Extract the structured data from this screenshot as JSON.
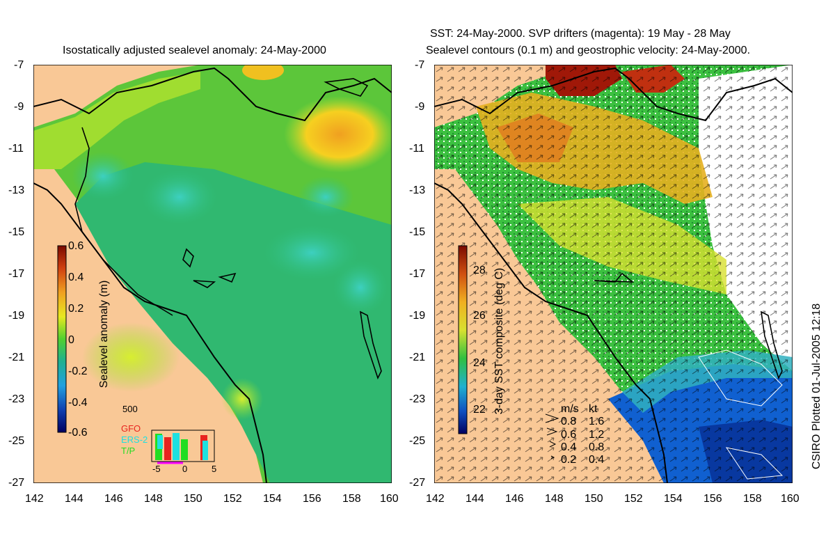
{
  "left_panel": {
    "title": "Isostatically adjusted sealevel anomaly: 24-May-2000",
    "y_ticks": [
      "-7",
      "-9",
      "-11",
      "-13",
      "-15",
      "-17",
      "-19",
      "-21",
      "-23",
      "-25",
      "-27"
    ],
    "x_ticks": [
      "142",
      "144",
      "146",
      "148",
      "150",
      "152",
      "154",
      "156",
      "158",
      "160"
    ],
    "colorbar": {
      "label": "Sealevel anomaly (m)",
      "ticks": [
        "0.6",
        "0.4",
        "0.2",
        "0",
        "-0.2",
        "-0.4",
        "-0.6"
      ]
    },
    "inset": {
      "top_label": "500",
      "legend": [
        {
          "name": "GFO",
          "color": "#e8231f"
        },
        {
          "name": "ERS-2",
          "color": "#1ee0e0"
        },
        {
          "name": "T/P",
          "color": "#22dd22"
        }
      ],
      "x_ticks": [
        "-5",
        "0",
        "5"
      ]
    }
  },
  "right_panel": {
    "title_line1": "SST: 24-May-2000. SVP drifters (magenta): 19 May - 28 May",
    "title_line2": "Sealevel contours (0.1 m) and geostrophic velocity: 24-May-2000.",
    "y_ticks": [
      "-7",
      "-9",
      "-11",
      "-13",
      "-15",
      "-17",
      "-19",
      "-21",
      "-23",
      "-25",
      "-27"
    ],
    "x_ticks": [
      "142",
      "144",
      "146",
      "148",
      "150",
      "152",
      "154",
      "156",
      "158",
      "160"
    ],
    "colorbar": {
      "label": "3-day SST composite (deg C)",
      "ticks": [
        "28",
        "26",
        "24",
        "22"
      ]
    },
    "velocity_legend": {
      "header_ms": "m/s",
      "header_kt": "kt",
      "rows": [
        {
          "ms": "0.8",
          "kt": "1.6"
        },
        {
          "ms": "0.6",
          "kt": "1.2"
        },
        {
          "ms": "0.4",
          "kt": "0.8"
        },
        {
          "ms": "0.2",
          "kt": "0.4"
        }
      ]
    }
  },
  "credit": "CSIRO Plotted 01-Jul-2005 12:18",
  "colors": {
    "land": "#f9c896",
    "ssh_bg": "#5cc63a",
    "sst_bg": "#3cc040"
  }
}
